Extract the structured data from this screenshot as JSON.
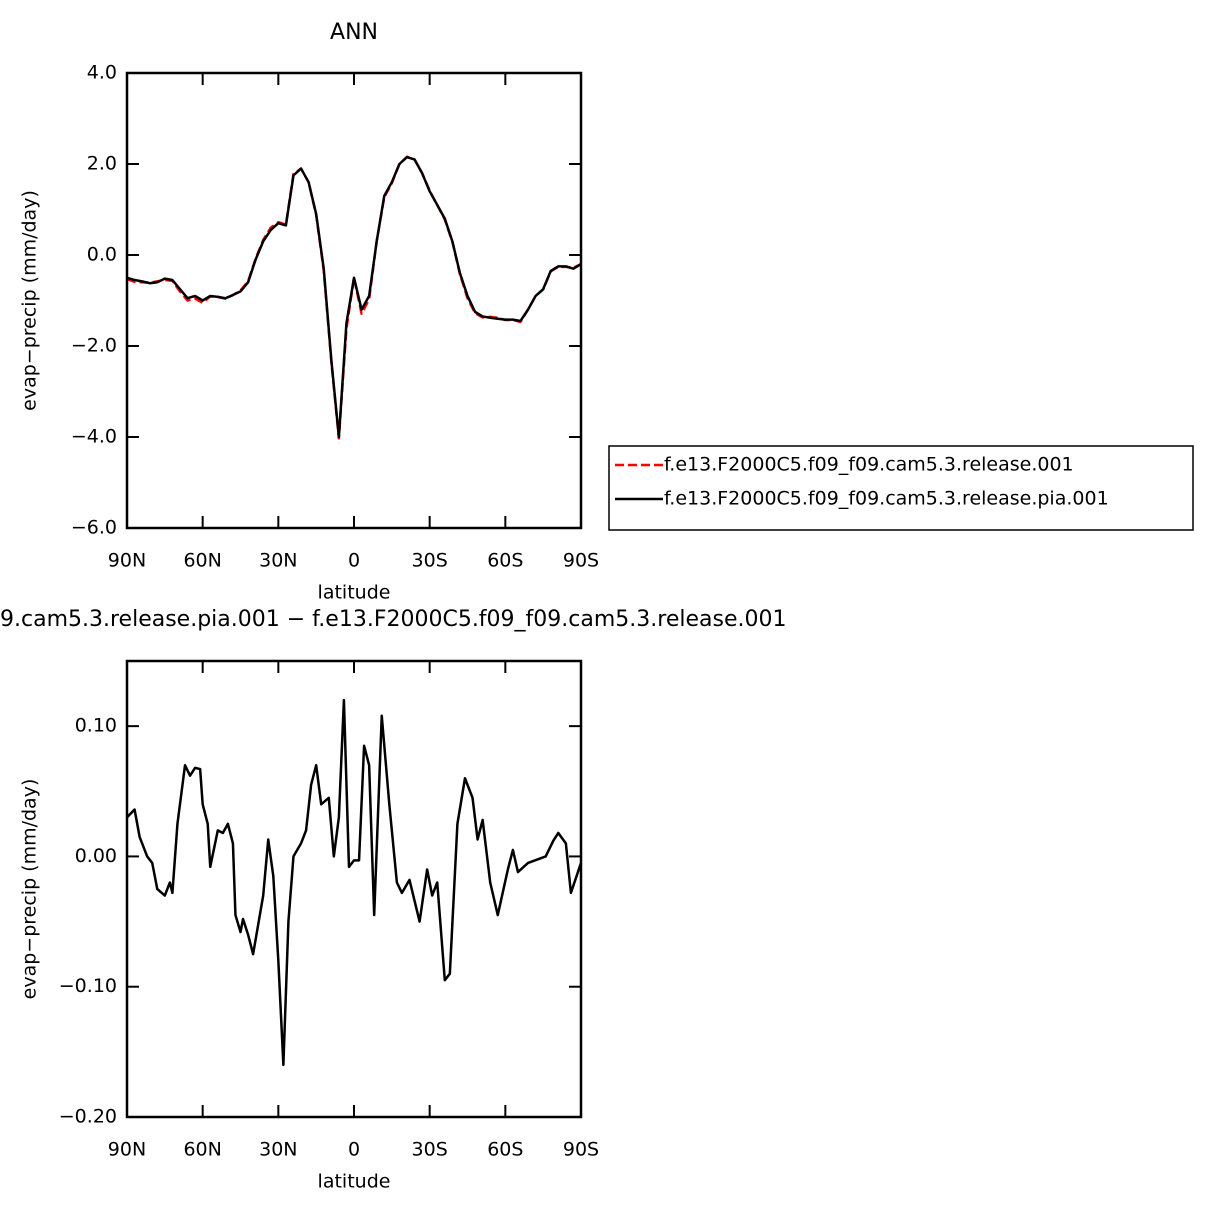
{
  "chart_data": [
    {
      "type": "line",
      "title": "ANN",
      "xlabel": "latitude",
      "ylabel": "evap−precip (mm/day)",
      "xlim": [
        90,
        -90
      ],
      "xticks": [
        {
          "value": 90,
          "label": "90N"
        },
        {
          "value": 60,
          "label": "60N"
        },
        {
          "value": 30,
          "label": "30N"
        },
        0,
        {
          "value": -30,
          "label": "30S"
        },
        {
          "value": -60,
          "label": "60S"
        },
        {
          "value": -90,
          "label": "90S"
        }
      ],
      "ylim": [
        -6,
        4
      ],
      "yticks": [
        {
          "value": 4,
          "label": "4.0"
        },
        {
          "value": 2,
          "label": "2.0"
        },
        {
          "value": 0,
          "label": "0.0"
        },
        {
          "value": -2,
          "label": "−2.0"
        },
        {
          "value": -4,
          "label": "−4.0"
        },
        {
          "value": -6,
          "label": "−6.0"
        }
      ],
      "legend": "right",
      "x": [
        90,
        87,
        84,
        81,
        78,
        75,
        72,
        69,
        66,
        63,
        60,
        57,
        54,
        51,
        48,
        45,
        42,
        39,
        36,
        33,
        30,
        27,
        24,
        21,
        18,
        15,
        12,
        9,
        6,
        3,
        0,
        -3,
        -6,
        -9,
        -12,
        -15,
        -18,
        -21,
        -24,
        -27,
        -30,
        -33,
        -36,
        -39,
        -42,
        -45,
        -48,
        -51,
        -54,
        -57,
        -60,
        -63,
        -66,
        -69,
        -72,
        -75,
        -78,
        -81,
        -84,
        -87,
        -90
      ],
      "series": [
        {
          "name": "f.e13.F2000C5.f09_f09.cam5.3.release.001",
          "color": "#ff0000",
          "line_style": "dashed",
          "values": [
            -0.53,
            -0.59,
            -0.6,
            -0.61,
            -0.58,
            -0.55,
            -0.57,
            -0.8,
            -1.0,
            -0.96,
            -1.05,
            -0.91,
            -0.92,
            -0.96,
            -0.88,
            -0.78,
            -0.58,
            -0.08,
            0.33,
            0.6,
            0.72,
            0.67,
            1.78,
            1.9,
            1.6,
            0.88,
            -0.34,
            -2.34,
            -4.03,
            -1.62,
            -0.5,
            -1.29,
            -0.97,
            0.31,
            1.27,
            1.58,
            2.0,
            2.16,
            2.1,
            1.8,
            1.41,
            1.1,
            0.78,
            0.29,
            -0.42,
            -0.95,
            -1.28,
            -1.37,
            -1.36,
            -1.38,
            -1.43,
            -1.43,
            -1.47,
            -1.2,
            -0.9,
            -0.76,
            -0.36,
            -0.26,
            -0.26,
            -0.28,
            -0.2
          ]
        },
        {
          "name": "f.e13.F2000C5.f09_f09.cam5.3.release.pia.001",
          "color": "#000000",
          "line_style": "solid",
          "values": [
            -0.5,
            -0.55,
            -0.58,
            -0.62,
            -0.6,
            -0.52,
            -0.55,
            -0.75,
            -0.95,
            -0.9,
            -1.0,
            -0.9,
            -0.92,
            -0.95,
            -0.88,
            -0.8,
            -0.6,
            -0.1,
            0.3,
            0.55,
            0.7,
            0.65,
            1.75,
            1.9,
            1.6,
            0.9,
            -0.3,
            -2.3,
            -4.0,
            -1.5,
            -0.5,
            -1.2,
            -0.9,
            0.3,
            1.3,
            1.6,
            2.0,
            2.15,
            2.1,
            1.8,
            1.4,
            1.1,
            0.8,
            0.3,
            -0.4,
            -0.9,
            -1.25,
            -1.35,
            -1.38,
            -1.4,
            -1.42,
            -1.42,
            -1.45,
            -1.2,
            -0.9,
            -0.75,
            -0.35,
            -0.25,
            -0.25,
            -0.3,
            -0.2
          ]
        }
      ]
    },
    {
      "type": "line",
      "title": "9.cam5.3.release.pia.001 − f.e13.F2000C5.f09_f09.cam5.3.release.001",
      "xlabel": "latitude",
      "ylabel": "evap−precip (mm/day)",
      "xlim": [
        90,
        -90
      ],
      "xticks": [
        {
          "value": 90,
          "label": "90N"
        },
        {
          "value": 60,
          "label": "60N"
        },
        {
          "value": 30,
          "label": "30N"
        },
        0,
        {
          "value": -30,
          "label": "30S"
        },
        {
          "value": -60,
          "label": "60S"
        },
        {
          "value": -90,
          "label": "90S"
        }
      ],
      "ylim": [
        -0.2,
        0.15
      ],
      "yticks": [
        {
          "value": 0.1,
          "label": "0.10"
        },
        {
          "value": 0,
          "label": "0.00"
        },
        {
          "value": -0.1,
          "label": "−0.10"
        },
        {
          "value": -0.2,
          "label": "−0.20"
        }
      ],
      "x": [
        90,
        87,
        85,
        82,
        80,
        78,
        75,
        73,
        72,
        70,
        67,
        65,
        63,
        61,
        60,
        58,
        57,
        54,
        52,
        50,
        48,
        47,
        45,
        44,
        42,
        40,
        36,
        34,
        32,
        30,
        28,
        26,
        24,
        21,
        19,
        17,
        15,
        13,
        10,
        8,
        6,
        4,
        2,
        0,
        -2,
        -4,
        -6,
        -8,
        -11,
        -14,
        -17,
        -19,
        -22,
        -26,
        -29,
        -31,
        -33,
        -36,
        -38,
        -41,
        -44,
        -47,
        -49,
        -51,
        -54,
        -57,
        -61,
        -63,
        -65,
        -69,
        -76,
        -79,
        -81,
        -84,
        -86,
        -90
      ],
      "color": "#000000",
      "values": [
        0.03,
        0.036,
        0.015,
        0.0,
        -0.005,
        -0.025,
        -0.03,
        -0.02,
        -0.028,
        0.025,
        0.07,
        0.062,
        0.068,
        0.067,
        0.04,
        0.025,
        -0.008,
        0.02,
        0.018,
        0.025,
        0.01,
        -0.045,
        -0.058,
        -0.048,
        -0.06,
        -0.075,
        -0.03,
        0.013,
        -0.015,
        -0.08,
        -0.16,
        -0.05,
        0.0,
        0.01,
        0.02,
        0.055,
        0.07,
        0.04,
        0.045,
        0.0,
        0.03,
        0.12,
        -0.008,
        -0.003,
        -0.003,
        0.085,
        0.07,
        -0.045,
        0.108,
        0.04,
        -0.02,
        -0.028,
        -0.018,
        -0.05,
        -0.01,
        -0.03,
        -0.02,
        -0.095,
        -0.09,
        0.025,
        0.06,
        0.045,
        0.013,
        0.028,
        -0.02,
        -0.045,
        -0.01,
        0.005,
        -0.012,
        -0.005,
        0.0,
        0.012,
        0.018,
        0.01,
        -0.028,
        -0.005
      ]
    }
  ]
}
